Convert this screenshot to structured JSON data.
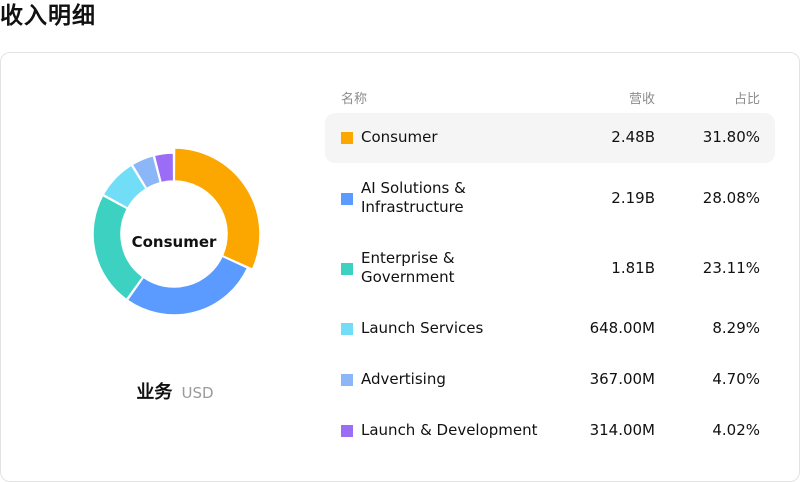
{
  "page": {
    "title": "收入明细"
  },
  "segment": {
    "title": "业务",
    "unit": "USD"
  },
  "table": {
    "headers": {
      "name": "名称",
      "revenue": "营收",
      "share": "占比"
    },
    "rows": [
      {
        "name_lines": [
          "Consumer"
        ],
        "revenue": "2.48B",
        "share": "31.80%",
        "color": "#fba700",
        "selected": true
      },
      {
        "name_lines": [
          "AI Solutions &",
          "Infrastructure"
        ],
        "revenue": "2.19B",
        "share": "28.08%",
        "color": "#5b9bff",
        "selected": false
      },
      {
        "name_lines": [
          "Enterprise &",
          "Government"
        ],
        "revenue": "1.81B",
        "share": "23.11%",
        "color": "#3dd1c1",
        "selected": false
      },
      {
        "name_lines": [
          "Launch Services"
        ],
        "revenue": "648.00M",
        "share": "8.29%",
        "color": "#71ddf7",
        "selected": false
      },
      {
        "name_lines": [
          "Advertising"
        ],
        "revenue": "367.00M",
        "share": "4.70%",
        "color": "#8bb6f8",
        "selected": false
      },
      {
        "name_lines": [
          "Launch & Development"
        ],
        "revenue": "314.00M",
        "share": "4.02%",
        "color": "#9b6cf6",
        "selected": false
      }
    ]
  },
  "chart_data": {
    "type": "pie",
    "donut": true,
    "center_label": "Consumer",
    "categories": [
      "Consumer",
      "AI Solutions & Infrastructure",
      "Enterprise & Government",
      "Launch Services",
      "Advertising",
      "Launch & Development"
    ],
    "values": [
      31.8,
      28.08,
      23.11,
      8.29,
      4.7,
      4.02
    ],
    "colors": [
      "#fba700",
      "#5b9bff",
      "#3dd1c1",
      "#71ddf7",
      "#8bb6f8",
      "#9b6cf6"
    ],
    "highlighted": "Consumer"
  }
}
